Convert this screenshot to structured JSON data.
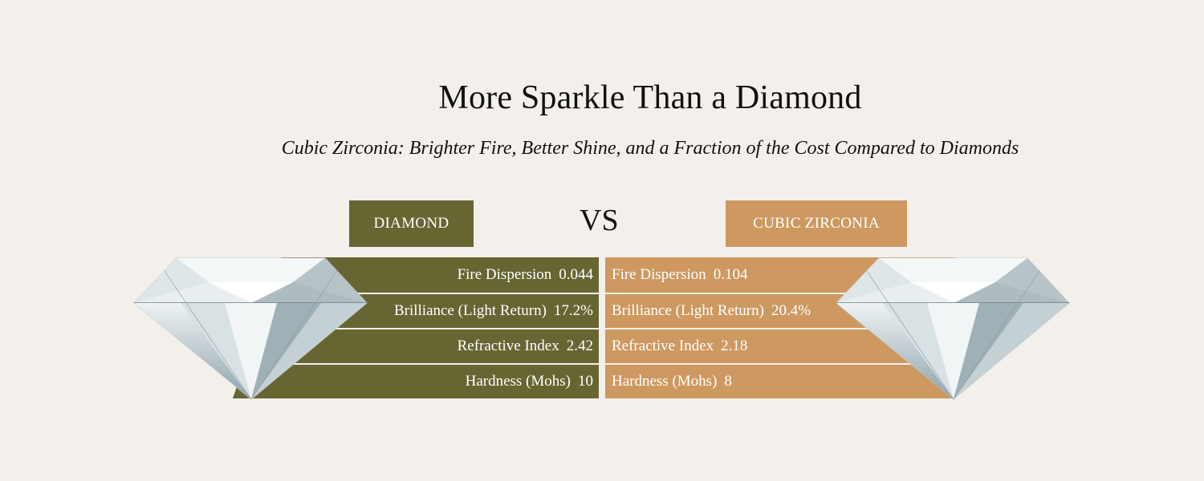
{
  "header": {
    "title": "More Sparkle Than a Diamond",
    "subtitle": "Cubic Zirconia: Brighter Fire, Better Shine, and a Fraction of the Cost Compared to Diamonds"
  },
  "comparison": {
    "left_label": "DIAMOND",
    "vs": "VS",
    "right_label": "CUBIC ZIRCONIA",
    "colors": {
      "diamond": "#676633",
      "cubic_zirconia": "#cd9960",
      "background": "#f3f0eb"
    },
    "rows": [
      {
        "metric": "Fire Dispersion",
        "diamond": "0.044",
        "cz": "0.104"
      },
      {
        "metric": "Brilliance (Light Return)",
        "diamond": "17.2%",
        "cz": "20.4%"
      },
      {
        "metric": "Refractive Index",
        "diamond": "2.42",
        "cz": "2.18"
      },
      {
        "metric": "Hardness (Mohs)",
        "diamond": "10",
        "cz": "8"
      }
    ]
  },
  "images": {
    "left_gem": "diamond-image",
    "right_gem": "diamond-image"
  }
}
